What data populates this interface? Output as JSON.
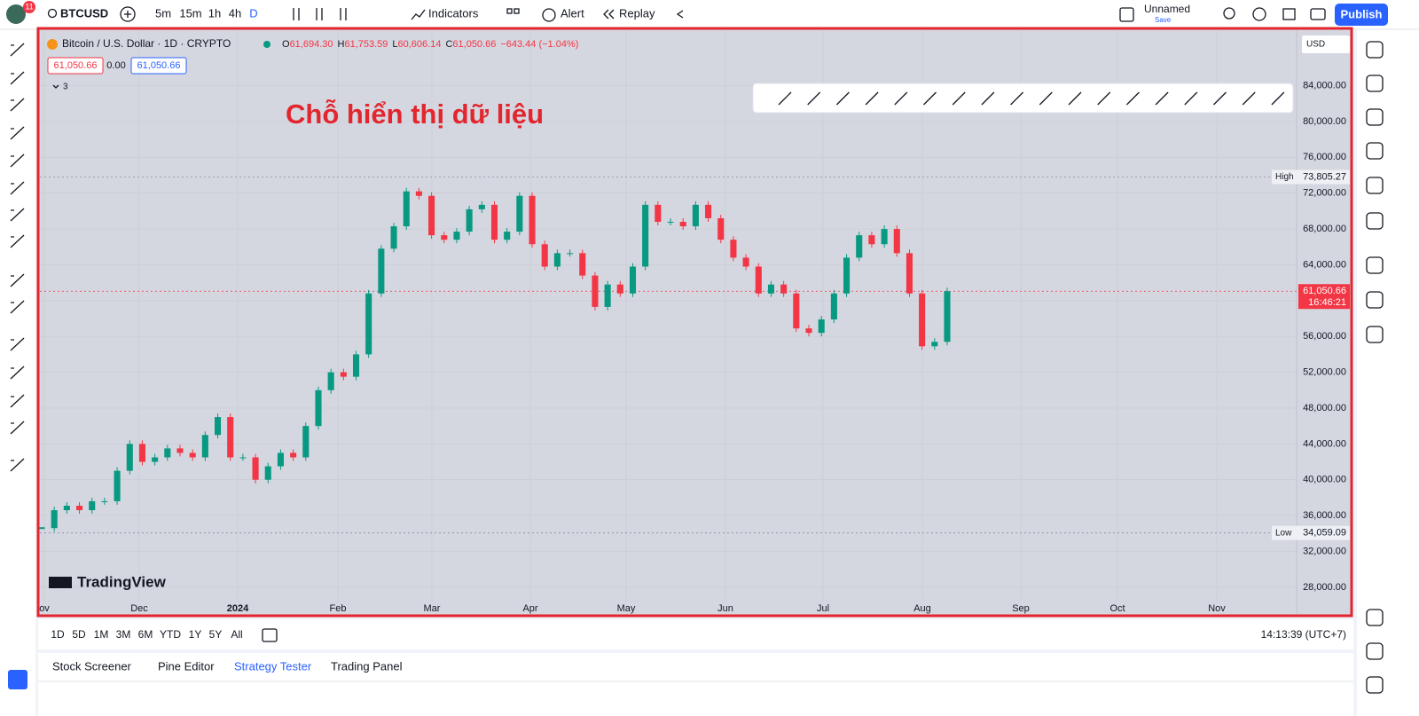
{
  "top_bar": {
    "notification": "11",
    "symbol": "BTCUSD",
    "intervals": [
      "5m",
      "15m",
      "1h",
      "4h",
      "D"
    ],
    "indicators": "Indicators",
    "alert": "Alert",
    "replay": "Replay",
    "layout_name": "Unnamed",
    "save": "Save",
    "publish": "Publish"
  },
  "chart_data": {
    "type": "candlestick",
    "title": "Bitcoin / U.S. Dollar · 1D · CRYPTO",
    "ohlc_legend": [
      "O",
      "61,694.30",
      "H",
      "61,753.59",
      "L",
      "60,606.14",
      "C",
      "61,050.66",
      "−643.44 (−1.04%)"
    ],
    "price_badges": [
      "61,050.66",
      "0.00",
      "61,050.66"
    ],
    "indicator_count": "3",
    "currency": "USD",
    "annotation": "Chỗ hiển thị dữ liệu",
    "watermark": "TradingView",
    "categories": [
      "ov",
      "Dec",
      "2024",
      "Feb",
      "Mar",
      "Apr",
      "May",
      "Jun",
      "Jul",
      "Aug",
      "Sep",
      "Oct",
      "Nov"
    ],
    "closes": [
      34600,
      36600,
      37100,
      36600,
      37600,
      37600,
      41000,
      44000,
      42000,
      42500,
      43500,
      43000,
      42500,
      45000,
      47000,
      42500,
      42500,
      40000,
      41500,
      43000,
      42500,
      46000,
      50000,
      52000,
      51500,
      54000,
      60800,
      65800,
      68300,
      72200,
      71700,
      67300,
      66800,
      67700,
      70200,
      70700,
      66800,
      67700,
      71700,
      66300,
      63800,
      65300,
      65300,
      62800,
      59300,
      61800,
      60800,
      63800,
      70700,
      68800,
      68800,
      68300,
      70700,
      69200,
      66800,
      64800,
      63800,
      60800,
      61800,
      60800,
      56900,
      56400,
      57900,
      60800,
      64800,
      67300,
      66300,
      68000,
      65300,
      60800,
      54900,
      55400,
      61050.66
    ],
    "up_color": "#089981",
    "down_color": "#f23645",
    "ylim": [
      26400,
      90200
    ],
    "yticks": [
      {
        "value": 28000,
        "label": "28,000.00"
      },
      {
        "value": 32000,
        "label": "32,000.00"
      },
      {
        "value": 36000,
        "label": "36,000.00"
      },
      {
        "value": 40000,
        "label": "40,000.00"
      },
      {
        "value": 44000,
        "label": "44,000.00"
      },
      {
        "value": 48000,
        "label": "48,000.00"
      },
      {
        "value": 52000,
        "label": "52,000.00"
      },
      {
        "value": 56000,
        "label": "56,000.00"
      },
      {
        "value": 60000,
        "label": "60,000.00"
      },
      {
        "value": 64000,
        "label": "64,000.00"
      },
      {
        "value": 68000,
        "label": "68,000.00"
      },
      {
        "value": 72000,
        "label": "72,000.00"
      },
      {
        "value": 76000,
        "label": "76,000.00"
      },
      {
        "value": 80000,
        "label": "80,000.00"
      },
      {
        "value": 84000,
        "label": "84,000.00"
      }
    ],
    "high_marker": {
      "name": "High",
      "price": {
        "value": 73805.27,
        "label": "73,805.27"
      }
    },
    "low_marker": {
      "name": "Low",
      "price": {
        "value": 34059.09,
        "label": "34,059.09"
      }
    },
    "last_price": {
      "price": {
        "value": 61050.66,
        "label": "61,050.66"
      },
      "countdown": "16:46:21"
    },
    "grid": true
  },
  "bottom_bar": {
    "ranges": [
      "1D",
      "5D",
      "1M",
      "3M",
      "6M",
      "YTD",
      "1Y",
      "5Y",
      "All"
    ],
    "clock": "14:13:39 (UTC+7)"
  },
  "panel_tabs": [
    "Stock Screener",
    "Pine Editor",
    "Strategy Tester",
    "Trading Panel"
  ]
}
